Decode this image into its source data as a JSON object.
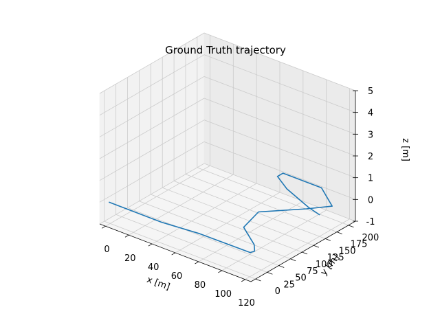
{
  "chart_data": {
    "type": "line",
    "projection": "3d",
    "title": "Ground Truth trajectory",
    "xlabel": "x [m]",
    "ylabel": "y [m]",
    "zlabel": "z [m]",
    "xlim": [
      -5,
      125
    ],
    "ylim": [
      -10,
      215
    ],
    "zlim": [
      -1,
      5
    ],
    "xticks": [
      "0",
      "20",
      "40",
      "60",
      "80",
      "100",
      "120"
    ],
    "yticks": [
      "0",
      "25",
      "50",
      "75",
      "100",
      "125",
      "150",
      "175",
      "200"
    ],
    "zticks": [
      "-1",
      "0",
      "1",
      "2",
      "3",
      "4",
      "5"
    ],
    "grid": true,
    "series": [
      {
        "color": "#1f77b4",
        "x": [
          0,
          45,
          75,
          118,
          119,
          113,
          92,
          86,
          108,
          119,
          97,
          64,
          64,
          80,
          108,
          120
        ],
        "y": [
          -2,
          -2,
          5,
          6,
          13,
          27,
          57,
          104,
          152,
          180,
          212,
          212,
          200,
          180,
          157,
          150
        ],
        "z": [
          0,
          0,
          0,
          0,
          0,
          0,
          0,
          0,
          0,
          0,
          0,
          0,
          0,
          0,
          0,
          0
        ]
      }
    ]
  }
}
